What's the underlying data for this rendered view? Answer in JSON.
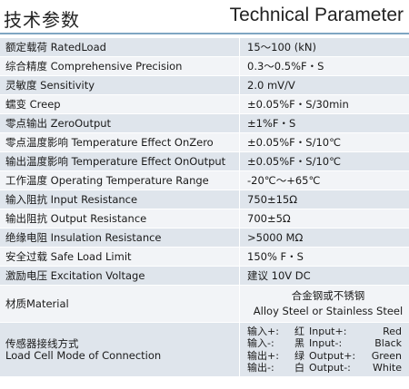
{
  "header": {
    "title_cn": "技术参数",
    "title_en": "Technical Parameter"
  },
  "rows": [
    {
      "label": "额定载荷 RatedLoad",
      "value": "15～100 (kN)"
    },
    {
      "label": "综合精度 Comprehensive Precision",
      "value": "0.3～0.5%F・S"
    },
    {
      "label": "灵敏度 Sensitivity",
      "value": "2.0 mV/V"
    },
    {
      "label": "蠕变 Creep",
      "value": "±0.05%F・S/30min"
    },
    {
      "label": "零点输出 ZeroOutput",
      "value": "±1%F・S"
    },
    {
      "label": "零点温度影响 Temperature Effect OnZero",
      "value": "±0.05%F・S/10℃"
    },
    {
      "label": "输出温度影响 Temperature Effect OnOutput",
      "value": "±0.05%F・S/10℃"
    },
    {
      "label": "工作温度 Operating Temperature Range",
      "value": "-20℃～+65℃"
    },
    {
      "label": "输入阻抗 Input Resistance",
      "value": "750±15Ω"
    },
    {
      "label": "输出阻抗 Output Resistance",
      "value": "700±5Ω"
    },
    {
      "label": "绝缘电阻 Insulation Resistance",
      "value": ">5000 MΩ"
    },
    {
      "label": "安全过载 Safe Load Limit",
      "value": "150% F・S"
    },
    {
      "label": "激励电压 Excitation Voltage",
      "value": "建议 10V DC"
    }
  ],
  "material": {
    "label": "材质Material",
    "value_cn": "合金钢或不锈钢",
    "value_en": "Alloy Steel or Stainless Steel"
  },
  "connection": {
    "label_cn": "传感器接线方式",
    "label_en": "Load Cell Mode of Connection",
    "wires": [
      {
        "cn": "输入+:",
        "cn_color": "红",
        "en": "Input+:",
        "en_color": "Red"
      },
      {
        "cn": "输入-:",
        "cn_color": "黑",
        "en": "Input-:",
        "en_color": "Black"
      },
      {
        "cn": "输出+:",
        "cn_color": "绿",
        "en": "Output+:",
        "en_color": "Green"
      },
      {
        "cn": "输出-:",
        "cn_color": "白",
        "en": "Output-:",
        "en_color": "White"
      }
    ]
  },
  "colors": {
    "row_dark": "#dfe5ec",
    "row_light": "#f2f4f7",
    "header_rule": "#7fa6c2"
  }
}
